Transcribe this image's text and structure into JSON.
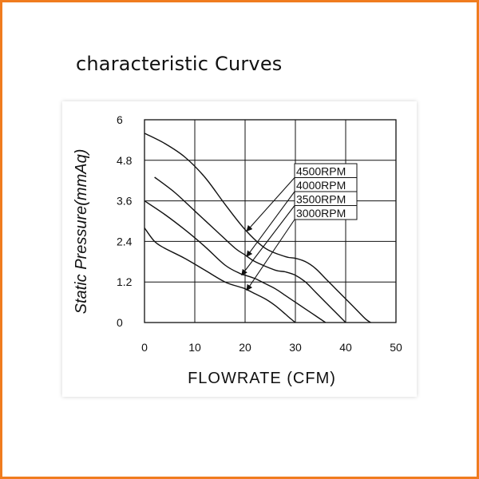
{
  "page_title": "characteristic Curves",
  "frame_color": "#f07c1f",
  "chart_data": {
    "type": "line",
    "title": "",
    "xlabel": "FLOWRATE (CFM)",
    "ylabel": "Static Pressure(mmAq)",
    "xlim": [
      0,
      50
    ],
    "ylim": [
      0,
      6
    ],
    "x_ticks": [
      "0",
      "10",
      "20",
      "30",
      "40",
      "50"
    ],
    "y_ticks": [
      "0",
      "1.2",
      "2.4",
      "3.6",
      "4.8",
      "6"
    ],
    "grid": true,
    "series": [
      {
        "name": "4500RPM",
        "x": [
          0,
          4,
          8,
          12,
          16,
          20,
          24,
          28,
          30,
          32,
          34,
          36,
          38,
          40,
          42,
          44,
          45
        ],
        "y": [
          5.6,
          5.3,
          4.9,
          4.3,
          3.5,
          2.75,
          2.2,
          1.95,
          1.9,
          1.8,
          1.6,
          1.3,
          1.0,
          0.7,
          0.4,
          0.1,
          0
        ]
      },
      {
        "name": "4000RPM",
        "x": [
          2,
          6,
          10,
          14,
          18,
          20,
          22,
          26,
          28,
          30,
          32,
          34,
          36,
          38,
          40
        ],
        "y": [
          4.3,
          3.85,
          3.3,
          2.75,
          2.2,
          2.0,
          1.8,
          1.55,
          1.5,
          1.4,
          1.2,
          0.9,
          0.6,
          0.3,
          0
        ]
      },
      {
        "name": "3500RPM",
        "x": [
          0,
          4,
          8,
          12,
          16,
          19,
          20,
          22,
          24,
          26,
          28,
          30,
          32,
          34,
          36
        ],
        "y": [
          3.6,
          3.2,
          2.75,
          2.25,
          1.7,
          1.45,
          1.4,
          1.3,
          1.15,
          1.0,
          0.8,
          0.6,
          0.4,
          0.2,
          0
        ]
      },
      {
        "name": "3000RPM",
        "x": [
          0,
          2,
          4,
          8,
          12,
          16,
          19,
          20,
          22,
          24,
          26,
          28,
          29,
          30
        ],
        "y": [
          2.8,
          2.4,
          2.2,
          1.9,
          1.55,
          1.2,
          1.05,
          1.0,
          0.85,
          0.7,
          0.5,
          0.25,
          0.12,
          0
        ]
      }
    ],
    "annotations": [
      {
        "label": "4500RPM",
        "arrow_to": [
          20,
          2.75
        ]
      },
      {
        "label": "4000RPM",
        "arrow_to": [
          20,
          2.0
        ]
      },
      {
        "label": "3500RPM",
        "arrow_to": [
          19,
          1.45
        ]
      },
      {
        "label": "3000RPM",
        "arrow_to": [
          20,
          1.0
        ]
      }
    ]
  }
}
